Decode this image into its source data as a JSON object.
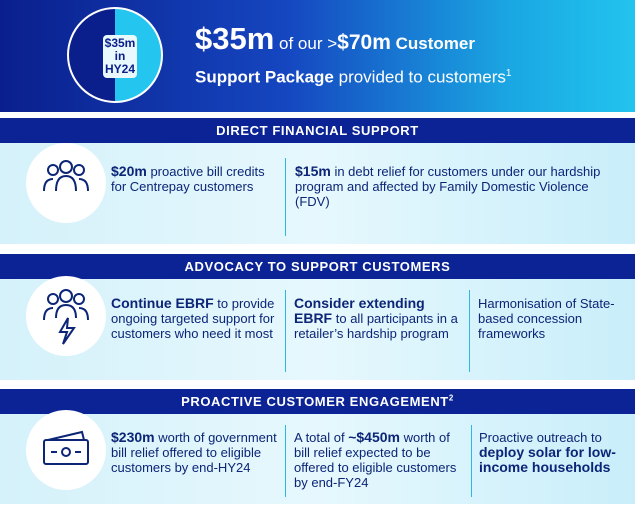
{
  "header": {
    "badge": [
      "$35m",
      "in",
      "HY24"
    ],
    "headline": [
      "$35m",
      "of our >",
      "$70m",
      "Customer",
      "Support Package",
      "provided to customers",
      "1"
    ]
  },
  "sections": [
    {
      "title": "DIRECT FINANCIAL SUPPORT",
      "items": [
        [
          {
            "text": "$20m",
            "bold": true
          },
          {
            "text": "proactive bill credits for Centrepay customers",
            "bold": false
          }
        ],
        [
          {
            "text": "$15m",
            "bold": true
          },
          {
            "text": "in debt relief for customers under our hardship program and affected by Family Domestic Violence (FDV)",
            "bold": false
          }
        ]
      ]
    },
    {
      "title": "ADVOCACY TO SUPPORT CUSTOMERS",
      "items": [
        [
          {
            "text": "Continue EBRF",
            "bold": true
          },
          {
            "text": "to provide ongoing targeted support for customers who need it most",
            "bold": false
          }
        ],
        [
          {
            "text": "Consider extending EBRF",
            "bold": true
          },
          {
            "text": "to all participants in a retailer’s hardship program",
            "bold": false
          }
        ],
        [
          {
            "text": "Harmonisation of State-based concession frameworks",
            "bold": false
          }
        ]
      ]
    },
    {
      "title": "PROACTIVE CUSTOMER ENGAGEMENT",
      "title_sup": "2",
      "items": [
        [
          {
            "text": "$230m",
            "bold": true
          },
          {
            "text": "worth of government bill relief offered to eligible customers by end-HY24",
            "bold": false
          }
        ],
        [
          {
            "text": "A total of",
            "bold": false
          },
          {
            "text": "~$450m",
            "bold": true
          },
          {
            "text": "worth of bill relief expected to be offered to eligible customers by end-FY24",
            "bold": false
          }
        ],
        [
          {
            "text": "Proactive outreach to",
            "bold": false
          },
          {
            "text": "deploy solar for low-income households",
            "bold": true
          }
        ]
      ]
    }
  ]
}
